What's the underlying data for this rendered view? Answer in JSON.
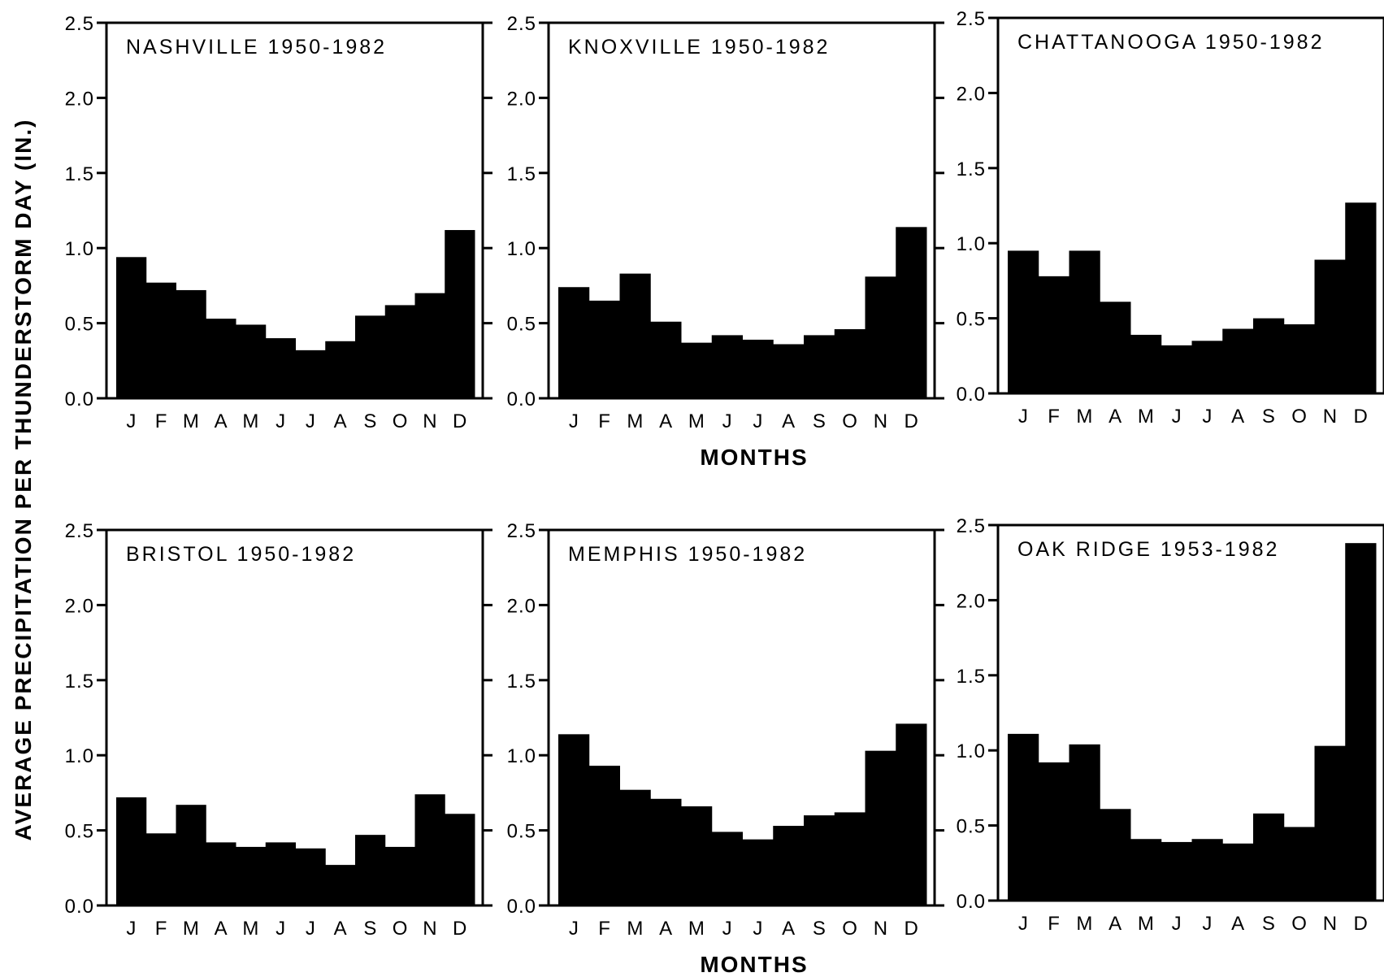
{
  "figure": {
    "ylabel": "AVERAGE PRECIPITATION PER THUNDERSTORM DAY (IN.)",
    "xlabel_top": "MONTHS",
    "xlabel_bottom": "MONTHS"
  },
  "chart_data": [
    {
      "type": "bar",
      "title": "NASHVILLE 1950-1982",
      "categories": [
        "J",
        "F",
        "M",
        "A",
        "M",
        "J",
        "J",
        "A",
        "S",
        "O",
        "N",
        "D"
      ],
      "values": [
        0.94,
        0.77,
        0.72,
        0.53,
        0.49,
        0.4,
        0.32,
        0.38,
        0.55,
        0.62,
        0.7,
        1.12
      ],
      "ylim": [
        0,
        2.5
      ],
      "yticks": [
        "0.0",
        "0.5",
        "1.0",
        "1.5",
        "2.0",
        "2.5"
      ],
      "xlabel": "",
      "ylabel": "AVERAGE PRECIPITATION PER THUNDERSTORM DAY (IN.)"
    },
    {
      "type": "bar",
      "title": "KNOXVILLE 1950-1982",
      "categories": [
        "J",
        "F",
        "M",
        "A",
        "M",
        "J",
        "J",
        "A",
        "S",
        "O",
        "N",
        "D"
      ],
      "values": [
        0.74,
        0.65,
        0.83,
        0.51,
        0.37,
        0.42,
        0.39,
        0.36,
        0.42,
        0.46,
        0.81,
        1.14
      ],
      "ylim": [
        0,
        2.5
      ],
      "yticks": [
        "0.0",
        "0.5",
        "1.0",
        "1.5",
        "2.0",
        "2.5"
      ],
      "xlabel": "MONTHS",
      "ylabel": ""
    },
    {
      "type": "bar",
      "title": "CHATTANOOGA 1950-1982",
      "categories": [
        "J",
        "F",
        "M",
        "A",
        "M",
        "J",
        "J",
        "A",
        "S",
        "O",
        "N",
        "D"
      ],
      "values": [
        0.95,
        0.78,
        0.95,
        0.61,
        0.39,
        0.32,
        0.35,
        0.43,
        0.5,
        0.46,
        0.89,
        1.27
      ],
      "ylim": [
        0,
        2.5
      ],
      "yticks": [
        "0.0",
        "0.5",
        "1.0",
        "1.5",
        "2.0",
        "2.5"
      ],
      "xlabel": "",
      "ylabel": ""
    },
    {
      "type": "bar",
      "title": "BRISTOL 1950-1982",
      "categories": [
        "J",
        "F",
        "M",
        "A",
        "M",
        "J",
        "J",
        "A",
        "S",
        "O",
        "N",
        "D"
      ],
      "values": [
        0.72,
        0.48,
        0.67,
        0.42,
        0.39,
        0.42,
        0.38,
        0.27,
        0.47,
        0.39,
        0.74,
        0.61
      ],
      "ylim": [
        0,
        2.5
      ],
      "yticks": [
        "0.0",
        "0.5",
        "1.0",
        "1.5",
        "2.0",
        "2.5"
      ],
      "xlabel": "",
      "ylabel": "AVERAGE PRECIPITATION PER THUNDERSTORM DAY (IN.)"
    },
    {
      "type": "bar",
      "title": "MEMPHIS 1950-1982",
      "categories": [
        "J",
        "F",
        "M",
        "A",
        "M",
        "J",
        "J",
        "A",
        "S",
        "O",
        "N",
        "D"
      ],
      "values": [
        1.14,
        0.93,
        0.77,
        0.71,
        0.66,
        0.49,
        0.44,
        0.53,
        0.6,
        0.62,
        1.03,
        1.21
      ],
      "ylim": [
        0,
        2.5
      ],
      "yticks": [
        "0.0",
        "0.5",
        "1.0",
        "1.5",
        "2.0",
        "2.5"
      ],
      "xlabel": "MONTHS",
      "ylabel": ""
    },
    {
      "type": "bar",
      "title": "OAK RIDGE 1953-1982",
      "categories": [
        "J",
        "F",
        "M",
        "A",
        "M",
        "J",
        "J",
        "A",
        "S",
        "O",
        "N",
        "D"
      ],
      "values": [
        1.11,
        0.92,
        1.04,
        0.61,
        0.41,
        0.39,
        0.41,
        0.38,
        0.58,
        0.49,
        1.03,
        2.38
      ],
      "ylim": [
        0,
        2.5
      ],
      "yticks": [
        "0.0",
        "0.5",
        "1.0",
        "1.5",
        "2.0",
        "2.5"
      ],
      "xlabel": "",
      "ylabel": ""
    }
  ]
}
